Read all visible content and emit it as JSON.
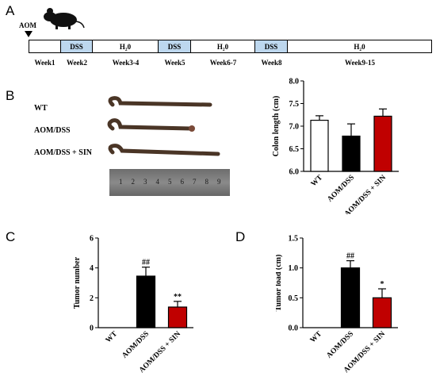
{
  "panels": {
    "a": "A",
    "b": "B",
    "c": "C",
    "d": "D"
  },
  "timeline": {
    "aom_label": "AOM",
    "segments": [
      {
        "label": "",
        "kind": "white"
      },
      {
        "label": "DSS",
        "kind": "dss"
      },
      {
        "label": "H₂0",
        "kind": "white"
      },
      {
        "label": "DSS",
        "kind": "dss"
      },
      {
        "label": "H₂0",
        "kind": "white"
      },
      {
        "label": "DSS",
        "kind": "dss"
      },
      {
        "label": "H₂0",
        "kind": "white"
      }
    ],
    "weeks": [
      "Week1",
      "Week2",
      "Week3-4",
      "Week5",
      "Week6-7",
      "Week8",
      "Week9-15"
    ],
    "colors": {
      "dss": "#bdd7ee",
      "white": "#ffffff"
    }
  },
  "photo": {
    "labels": [
      "WT",
      "AOM/DSS",
      "AOM/DSS + SIN"
    ],
    "ruler_numbers": [
      "1",
      "2",
      "3",
      "4",
      "5",
      "6",
      "7",
      "8",
      "9"
    ]
  },
  "chart_data": [
    {
      "type": "bar",
      "categories": [
        "WT",
        "AOM/DSS",
        "AOM/DSS + SIN"
      ],
      "values": [
        7.13,
        6.78,
        7.22
      ],
      "errors": [
        0.1,
        0.27,
        0.16
      ],
      "ylabel": "Colon length (cm)",
      "ylim": [
        6.0,
        8.0
      ],
      "yticks": [
        "6.0",
        "6.5",
        "7.0",
        "7.5",
        "8.0"
      ],
      "colors": [
        "#ffffff",
        "#000000",
        "#c00000"
      ],
      "annotations": [
        "",
        "",
        ""
      ]
    },
    {
      "type": "bar",
      "categories": [
        "WT",
        "AOM/DSS",
        "AOM/DSS + SIN"
      ],
      "values": [
        0,
        3.45,
        1.38
      ],
      "errors": [
        0,
        0.6,
        0.38
      ],
      "ylabel": "Tumor number",
      "ylim": [
        0,
        6
      ],
      "yticks": [
        "0",
        "2",
        "4",
        "6"
      ],
      "colors": [
        "#ffffff",
        "#000000",
        "#c00000"
      ],
      "annotations": [
        "",
        "##",
        "**"
      ]
    },
    {
      "type": "bar",
      "categories": [
        "WT",
        "AOM/DSS",
        "AOM/DSS + SIN"
      ],
      "values": [
        0,
        1.0,
        0.5
      ],
      "errors": [
        0,
        0.12,
        0.15
      ],
      "ylabel": "Tumor load (cm)",
      "ylim": [
        0,
        1.5
      ],
      "yticks": [
        "0.0",
        "0.5",
        "1.0",
        "1.5"
      ],
      "colors": [
        "#ffffff",
        "#000000",
        "#c00000"
      ],
      "annotations": [
        "",
        "##",
        "*"
      ]
    }
  ]
}
